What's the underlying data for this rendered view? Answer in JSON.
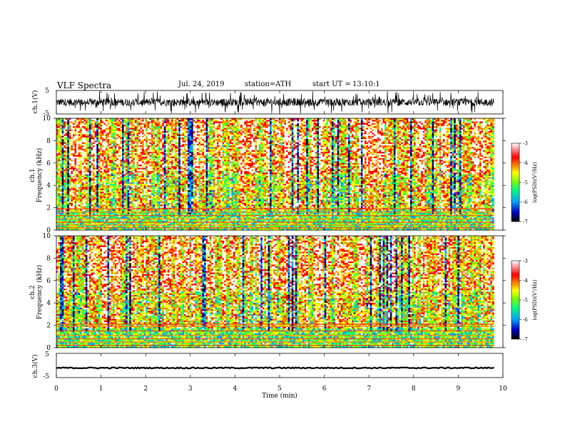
{
  "header": {
    "title": "VLF Spectra",
    "date": "Jul. 24, 2019",
    "station": "station=ATH",
    "start_ut_label": "start UT =",
    "start_ut_value": "13:10:1"
  },
  "chart_data": [
    {
      "type": "line",
      "name": "ch1-waveform",
      "ylabel": "ch.1(V)",
      "ylim": [
        -5,
        5
      ],
      "yticks": [
        "5",
        "-5"
      ],
      "xlim": [
        0,
        10
      ],
      "description_values": "dense noisy waveform, roughly -2 to +2 V with spikes to ±5 V over 0–9.8 min"
    },
    {
      "type": "heatmap",
      "name": "ch1-spectrogram",
      "ylabel_line1": "ch.1",
      "ylabel_line2": "Frequency (kHz)",
      "ylim": [
        0,
        10
      ],
      "yticks": [
        "0",
        "2",
        "4",
        "6",
        "8",
        "10"
      ],
      "xlim": [
        0,
        10
      ],
      "data_xmax": 9.8,
      "colorbar": {
        "label": "log(PSD)(V²/Hz)",
        "range": [
          -7,
          -3
        ],
        "ticks": [
          "-3",
          "-4",
          "-5",
          "-6",
          "-7"
        ]
      }
    },
    {
      "type": "heatmap",
      "name": "ch2-spectrogram",
      "ylabel_line1": "ch.2",
      "ylabel_line2": "Frequency (kHz)",
      "ylim": [
        0,
        10
      ],
      "yticks": [
        "0",
        "2",
        "4",
        "6",
        "8",
        "10"
      ],
      "xlim": [
        0,
        10
      ],
      "data_xmax": 9.8,
      "colorbar": {
        "label": "log(PSD)(V²/Hz)",
        "range": [
          -7,
          -3
        ],
        "ticks": [
          "-3",
          "-4",
          "-5",
          "-6",
          "-7"
        ]
      }
    },
    {
      "type": "line",
      "name": "ch3-waveform",
      "ylabel": "ch.3(V)",
      "ylim": [
        -5,
        5
      ],
      "yticks": [
        "5",
        "-5"
      ],
      "xlim": [
        0,
        10
      ],
      "description_values": "nearly flat signal around -1 V over 0–9.8 min"
    }
  ],
  "xaxis": {
    "label": "Time (min)",
    "ticks": [
      "0",
      "1",
      "2",
      "3",
      "4",
      "5",
      "6",
      "7",
      "8",
      "9",
      "10"
    ]
  },
  "colors": {
    "palette": [
      "#000000",
      "#0000c8",
      "#00a0ff",
      "#00ff80",
      "#80ff00",
      "#ffff00",
      "#ff8000",
      "#ff0000",
      "#ffffff"
    ]
  }
}
